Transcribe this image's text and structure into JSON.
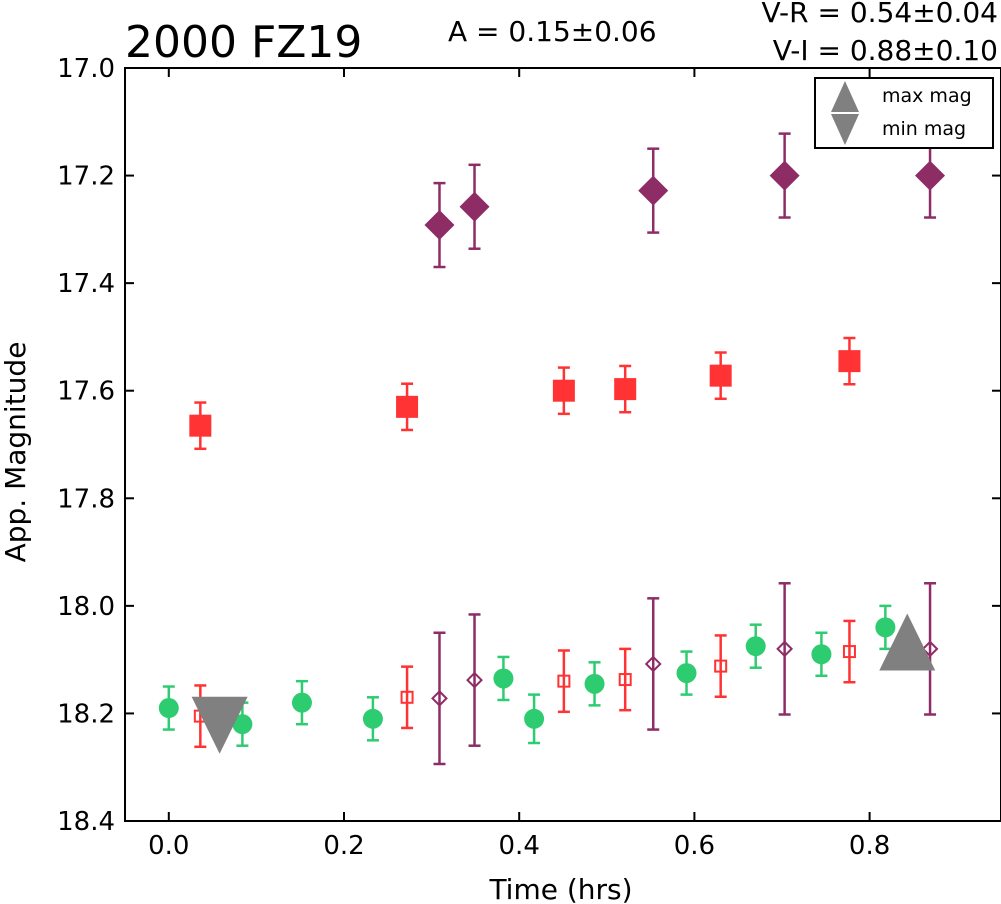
{
  "chart_data": {
    "type": "scatter",
    "title": "2000 FZ19",
    "annotations": {
      "amplitude": "A  = 0.15±0.06",
      "vr": "V-R = 0.54±0.04",
      "vi": "V-I  = 0.88±0.10"
    },
    "xlabel": "Time (hrs)",
    "ylabel": "App. Magnitude",
    "xlim": [
      -0.05,
      0.95
    ],
    "ylim": [
      18.4,
      17.0
    ],
    "y_inverted": true,
    "grid": false,
    "x_ticks": [
      "0.0",
      "0.2",
      "0.4",
      "0.6",
      "0.8"
    ],
    "y_ticks": [
      "17.0",
      "17.2",
      "17.4",
      "17.6",
      "17.8",
      "18.0",
      "18.2",
      "18.4"
    ],
    "legend": {
      "placement": "top-right",
      "entries": [
        {
          "label": "max mag",
          "marker": "triangle-up"
        },
        {
          "label": "min mag",
          "marker": "triangle-down"
        }
      ]
    },
    "series": [
      {
        "marker": "circle",
        "filled": true,
        "color": "#2ecc71",
        "points": [
          {
            "x": 0.0,
            "y": 18.19,
            "err": 0.04
          },
          {
            "x": 0.084,
            "y": 18.22,
            "err": 0.04
          },
          {
            "x": 0.152,
            "y": 18.18,
            "err": 0.04
          },
          {
            "x": 0.233,
            "y": 18.21,
            "err": 0.04
          },
          {
            "x": 0.382,
            "y": 18.135,
            "err": 0.04
          },
          {
            "x": 0.417,
            "y": 18.21,
            "err": 0.045
          },
          {
            "x": 0.486,
            "y": 18.145,
            "err": 0.04
          },
          {
            "x": 0.591,
            "y": 18.125,
            "err": 0.04
          },
          {
            "x": 0.67,
            "y": 18.075,
            "err": 0.04
          },
          {
            "x": 0.745,
            "y": 18.09,
            "err": 0.04
          },
          {
            "x": 0.818,
            "y": 18.04,
            "err": 0.04
          }
        ]
      },
      {
        "marker": "square",
        "filled": true,
        "color": "#ff3333",
        "points": [
          {
            "x": 0.036,
            "y": 17.665,
            "err": 0.043
          },
          {
            "x": 0.272,
            "y": 17.63,
            "err": 0.043
          },
          {
            "x": 0.451,
            "y": 17.6,
            "err": 0.043
          },
          {
            "x": 0.521,
            "y": 17.597,
            "err": 0.043
          },
          {
            "x": 0.63,
            "y": 17.572,
            "err": 0.043
          },
          {
            "x": 0.777,
            "y": 17.545,
            "err": 0.043
          }
        ]
      },
      {
        "marker": "square",
        "filled": false,
        "color": "#ff3333",
        "points": [
          {
            "x": 0.036,
            "y": 18.205,
            "err": 0.057
          },
          {
            "x": 0.272,
            "y": 18.17,
            "err": 0.057
          },
          {
            "x": 0.451,
            "y": 18.14,
            "err": 0.057
          },
          {
            "x": 0.521,
            "y": 18.137,
            "err": 0.057
          },
          {
            "x": 0.63,
            "y": 18.112,
            "err": 0.057
          },
          {
            "x": 0.777,
            "y": 18.085,
            "err": 0.057
          }
        ]
      },
      {
        "marker": "diamond",
        "filled": true,
        "color": "#8e2c66",
        "points": [
          {
            "x": 0.309,
            "y": 17.292,
            "err": 0.078
          },
          {
            "x": 0.349,
            "y": 17.258,
            "err": 0.078
          },
          {
            "x": 0.553,
            "y": 17.228,
            "err": 0.078
          },
          {
            "x": 0.703,
            "y": 17.2,
            "err": 0.078
          },
          {
            "x": 0.869,
            "y": 17.2,
            "err": 0.078
          }
        ]
      },
      {
        "marker": "diamond",
        "filled": false,
        "color": "#8e2c66",
        "points": [
          {
            "x": 0.309,
            "y": 18.172,
            "err": 0.122
          },
          {
            "x": 0.349,
            "y": 18.138,
            "err": 0.122
          },
          {
            "x": 0.553,
            "y": 18.108,
            "err": 0.122
          },
          {
            "x": 0.703,
            "y": 18.08,
            "err": 0.122
          },
          {
            "x": 0.869,
            "y": 18.08,
            "err": 0.122
          }
        ]
      },
      {
        "marker": "triangle-up",
        "filled": true,
        "color": "#808080",
        "points": [
          {
            "x": 0.843,
            "y": 18.07
          }
        ]
      },
      {
        "marker": "triangle-down",
        "filled": true,
        "color": "#808080",
        "points": [
          {
            "x": 0.058,
            "y": 18.21
          }
        ]
      }
    ]
  }
}
